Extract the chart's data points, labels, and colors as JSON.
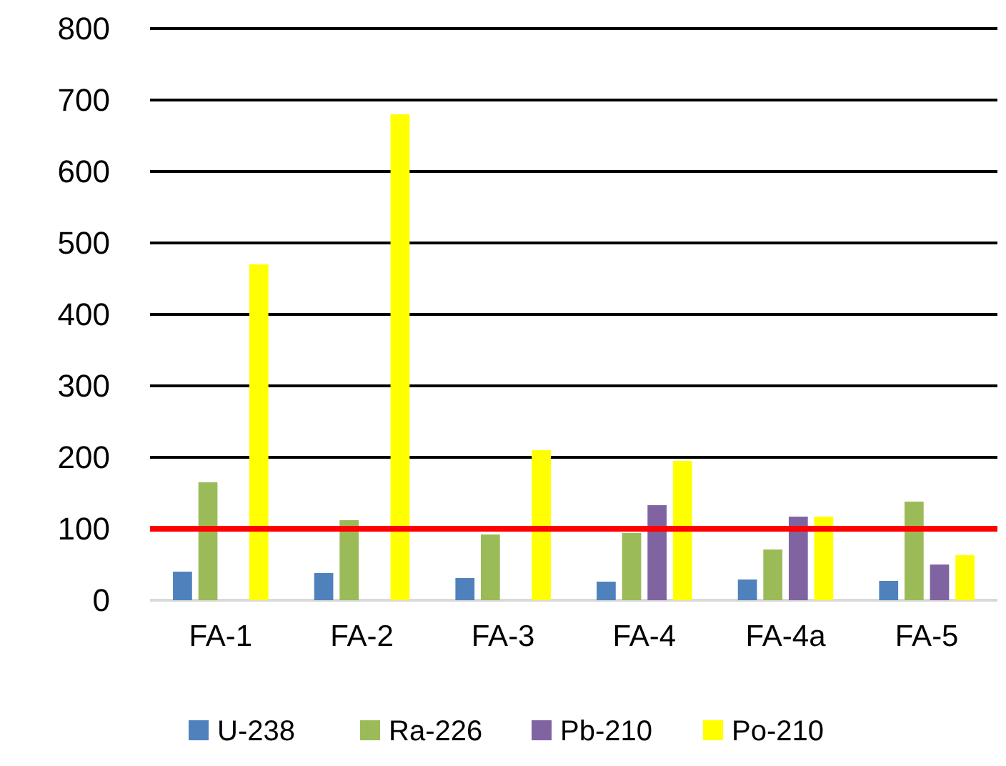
{
  "chart_data": {
    "type": "bar",
    "categories": [
      "FA-1",
      "FA-2",
      "FA-3",
      "FA-4",
      "FA-4a",
      "FA-5"
    ],
    "series": [
      {
        "name": "U-238",
        "color": "#4f81bd",
        "values": [
          40,
          38,
          31,
          26,
          29,
          27
        ]
      },
      {
        "name": "Ra-226",
        "color": "#9bbb59",
        "values": [
          165,
          112,
          92,
          94,
          71,
          138
        ]
      },
      {
        "name": "Pb-210",
        "color": "#8064a2",
        "values": [
          null,
          null,
          null,
          133,
          117,
          50
        ]
      },
      {
        "name": "Po-210",
        "color": "#ffff00",
        "values": [
          470,
          680,
          210,
          195,
          117,
          63
        ]
      }
    ],
    "ylim": [
      0,
      800
    ],
    "yticks": [
      0,
      100,
      200,
      300,
      400,
      500,
      600,
      700,
      800
    ],
    "grid": "y",
    "legend": "bottom",
    "ref_lines": [
      {
        "axis": "y",
        "value": 100,
        "color": "#ff0000"
      }
    ]
  }
}
